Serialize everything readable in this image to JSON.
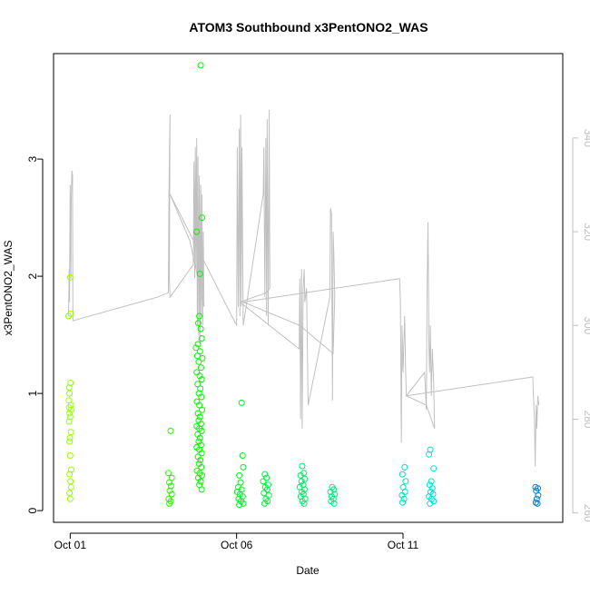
{
  "chart_data": {
    "type": "scatter",
    "title": "ATOM3 Southbound x3PentONO2_WAS",
    "xlabel": "Date",
    "ylabel": "x3PentONO2_WAS",
    "x_ticks": [
      "Oct 01",
      "Oct 06",
      "Oct 11"
    ],
    "x_tick_days": [
      1,
      6,
      11
    ],
    "xlim_days": [
      0.5,
      15.8
    ],
    "ylim": [
      -0.1,
      3.9
    ],
    "y_ticks": [
      0,
      1,
      2,
      3
    ],
    "y2lim": [
      258,
      358
    ],
    "y2_ticks": [
      260,
      280,
      300,
      320,
      340
    ],
    "grid": false,
    "series": [
      {
        "kind": "points",
        "axis": "left",
        "points": [
          [
            1.0,
            1.99
          ],
          [
            0.95,
            1.66
          ],
          [
            1.02,
            1.68
          ],
          [
            1.01,
            1.09
          ],
          [
            0.97,
            1.05
          ],
          [
            0.98,
            1.0
          ],
          [
            0.96,
            0.94
          ],
          [
            1.02,
            0.9
          ],
          [
            0.97,
            0.88
          ],
          [
            1.03,
            0.86
          ],
          [
            0.98,
            0.83
          ],
          [
            1.0,
            0.8
          ],
          [
            0.97,
            0.76
          ],
          [
            1.02,
            0.67
          ],
          [
            0.99,
            0.62
          ],
          [
            0.98,
            0.59
          ],
          [
            1.0,
            0.47
          ],
          [
            1.03,
            0.35
          ],
          [
            0.98,
            0.31
          ],
          [
            1.01,
            0.25
          ],
          [
            1.03,
            0.2
          ],
          [
            0.98,
            0.15
          ],
          [
            1.0,
            0.1
          ],
          [
            4.02,
            0.68
          ],
          [
            3.95,
            0.32
          ],
          [
            4.05,
            0.28
          ],
          [
            3.98,
            0.24
          ],
          [
            4.03,
            0.21
          ],
          [
            3.99,
            0.17
          ],
          [
            4.05,
            0.14
          ],
          [
            3.96,
            0.1
          ],
          [
            4.02,
            0.08
          ],
          [
            3.98,
            0.06
          ],
          [
            4.92,
            3.8
          ],
          [
            4.96,
            2.5
          ],
          [
            4.8,
            2.38
          ],
          [
            4.9,
            2.02
          ],
          [
            4.88,
            1.66
          ],
          [
            4.85,
            1.6
          ],
          [
            4.92,
            1.55
          ],
          [
            4.95,
            1.47
          ],
          [
            4.84,
            1.42
          ],
          [
            4.78,
            1.39
          ],
          [
            4.9,
            1.36
          ],
          [
            4.82,
            1.32
          ],
          [
            4.97,
            1.3
          ],
          [
            4.86,
            1.27
          ],
          [
            4.93,
            1.22
          ],
          [
            4.8,
            1.18
          ],
          [
            4.89,
            1.15
          ],
          [
            4.95,
            1.12
          ],
          [
            4.83,
            1.08
          ],
          [
            4.91,
            1.04
          ],
          [
            4.87,
            1.0
          ],
          [
            4.94,
            0.97
          ],
          [
            4.81,
            0.93
          ],
          [
            4.88,
            0.9
          ],
          [
            4.96,
            0.86
          ],
          [
            4.84,
            0.83
          ],
          [
            4.9,
            0.8
          ],
          [
            4.86,
            0.77
          ],
          [
            4.93,
            0.74
          ],
          [
            4.8,
            0.72
          ],
          [
            4.88,
            0.7
          ],
          [
            4.95,
            0.68
          ],
          [
            4.83,
            0.65
          ],
          [
            4.9,
            0.62
          ],
          [
            4.86,
            0.59
          ],
          [
            4.93,
            0.56
          ],
          [
            4.8,
            0.54
          ],
          [
            4.88,
            0.52
          ],
          [
            4.95,
            0.49
          ],
          [
            4.84,
            0.46
          ],
          [
            4.91,
            0.43
          ],
          [
            4.87,
            0.4
          ],
          [
            4.94,
            0.37
          ],
          [
            4.81,
            0.34
          ],
          [
            4.89,
            0.32
          ],
          [
            4.96,
            0.3
          ],
          [
            4.85,
            0.28
          ],
          [
            4.92,
            0.25
          ],
          [
            4.88,
            0.22
          ],
          [
            4.95,
            0.18
          ],
          [
            6.15,
            0.92
          ],
          [
            6.18,
            0.47
          ],
          [
            6.2,
            0.37
          ],
          [
            6.08,
            0.3
          ],
          [
            6.12,
            0.24
          ],
          [
            6.05,
            0.2
          ],
          [
            6.15,
            0.18
          ],
          [
            6.02,
            0.16
          ],
          [
            6.1,
            0.14
          ],
          [
            6.18,
            0.12
          ],
          [
            6.06,
            0.1
          ],
          [
            6.13,
            0.08
          ],
          [
            6.2,
            0.06
          ],
          [
            6.08,
            0.05
          ],
          [
            6.85,
            0.31
          ],
          [
            6.9,
            0.28
          ],
          [
            6.8,
            0.25
          ],
          [
            6.95,
            0.22
          ],
          [
            6.86,
            0.2
          ],
          [
            6.92,
            0.18
          ],
          [
            6.82,
            0.15
          ],
          [
            6.97,
            0.13
          ],
          [
            6.88,
            0.1
          ],
          [
            6.93,
            0.08
          ],
          [
            6.84,
            0.06
          ],
          [
            7.97,
            0.38
          ],
          [
            8.02,
            0.32
          ],
          [
            7.92,
            0.3
          ],
          [
            8.05,
            0.27
          ],
          [
            7.95,
            0.25
          ],
          [
            8.0,
            0.22
          ],
          [
            7.9,
            0.2
          ],
          [
            8.04,
            0.18
          ],
          [
            7.96,
            0.16
          ],
          [
            8.01,
            0.14
          ],
          [
            7.93,
            0.12
          ],
          [
            8.06,
            0.1
          ],
          [
            7.98,
            0.08
          ],
          [
            8.03,
            0.06
          ],
          [
            8.87,
            0.2
          ],
          [
            8.92,
            0.18
          ],
          [
            8.82,
            0.16
          ],
          [
            8.95,
            0.14
          ],
          [
            8.86,
            0.12
          ],
          [
            8.91,
            0.1
          ],
          [
            8.84,
            0.08
          ],
          [
            8.93,
            0.06
          ],
          [
            11.05,
            0.37
          ],
          [
            10.98,
            0.31
          ],
          [
            11.08,
            0.25
          ],
          [
            11.0,
            0.2
          ],
          [
            11.06,
            0.16
          ],
          [
            10.97,
            0.13
          ],
          [
            11.03,
            0.1
          ],
          [
            10.99,
            0.07
          ],
          [
            11.82,
            0.52
          ],
          [
            11.78,
            0.48
          ],
          [
            11.92,
            0.36
          ],
          [
            11.85,
            0.25
          ],
          [
            11.8,
            0.22
          ],
          [
            11.88,
            0.19
          ],
          [
            11.83,
            0.16
          ],
          [
            11.9,
            0.14
          ],
          [
            11.78,
            0.12
          ],
          [
            11.86,
            0.1
          ],
          [
            11.92,
            0.08
          ],
          [
            11.81,
            0.06
          ],
          [
            14.98,
            0.2
          ],
          [
            15.05,
            0.19
          ],
          [
            15.0,
            0.17
          ],
          [
            15.06,
            0.13
          ],
          [
            15.02,
            0.1
          ],
          [
            14.99,
            0.07
          ],
          [
            15.04,
            0.06
          ]
        ]
      },
      {
        "kind": "line",
        "axis": "right",
        "color": "#c0c0c0",
        "points": [
          [
            0.95,
            302
          ],
          [
            0.97,
            312
          ],
          [
            0.98,
            305
          ],
          [
            0.99,
            320
          ],
          [
            1.0,
            330
          ],
          [
            1.01,
            318
          ],
          [
            1.02,
            310
          ],
          [
            1.03,
            326
          ],
          [
            1.05,
            333
          ],
          [
            1.07,
            332
          ],
          [
            1.08,
            301
          ],
          [
            3.6,
            306
          ],
          [
            3.95,
            307
          ],
          [
            3.97,
            330
          ],
          [
            4.0,
            345
          ],
          [
            3.98,
            310
          ],
          [
            4.0,
            306
          ],
          [
            4.7,
            313
          ],
          [
            4.72,
            335
          ],
          [
            4.74,
            310
          ],
          [
            4.76,
            338
          ],
          [
            4.78,
            312
          ],
          [
            4.8,
            340
          ],
          [
            4.82,
            300
          ],
          [
            4.84,
            336
          ],
          [
            4.86,
            298
          ],
          [
            4.88,
            332
          ],
          [
            4.9,
            296
          ],
          [
            4.92,
            330
          ],
          [
            4.94,
            302
          ],
          [
            4.96,
            328
          ],
          [
            4.98,
            300
          ],
          [
            5.0,
            320
          ],
          [
            5.02,
            304
          ],
          [
            4.6,
            318
          ],
          [
            4.0,
            328
          ],
          [
            6.0,
            300
          ],
          [
            6.02,
            338
          ],
          [
            6.05,
            304
          ],
          [
            6.08,
            342
          ],
          [
            6.1,
            302
          ],
          [
            6.12,
            345
          ],
          [
            6.14,
            304
          ],
          [
            6.16,
            338
          ],
          [
            6.2,
            300
          ],
          [
            6.8,
            328
          ],
          [
            6.82,
            338
          ],
          [
            6.85,
            306
          ],
          [
            6.88,
            340
          ],
          [
            6.9,
            302
          ],
          [
            6.92,
            344
          ],
          [
            6.95,
            300
          ],
          [
            6.98,
            346
          ],
          [
            7.0,
            308
          ],
          [
            6.9,
            307
          ],
          [
            6.1,
            305
          ],
          [
            7.88,
            295
          ],
          [
            7.9,
            310
          ],
          [
            7.92,
            280
          ],
          [
            7.95,
            312
          ],
          [
            7.97,
            278
          ],
          [
            8.0,
            308
          ],
          [
            8.03,
            312
          ],
          [
            8.05,
            305
          ],
          [
            8.1,
            308
          ],
          [
            8.15,
            283
          ],
          [
            8.8,
            306
          ],
          [
            8.82,
            325
          ],
          [
            8.85,
            324
          ],
          [
            8.88,
            284
          ],
          [
            8.9,
            320
          ],
          [
            8.92,
            316
          ],
          [
            8.95,
            306
          ],
          [
            8.9,
            294
          ],
          [
            7.9,
            300
          ],
          [
            6.2,
            305
          ],
          [
            10.9,
            310
          ],
          [
            10.92,
            305
          ],
          [
            10.95,
            275
          ],
          [
            10.97,
            300
          ],
          [
            11.0,
            290
          ],
          [
            11.05,
            302
          ],
          [
            11.08,
            290
          ],
          [
            11.1,
            285
          ],
          [
            11.65,
            290
          ],
          [
            11.7,
            282
          ],
          [
            11.72,
            305
          ],
          [
            11.75,
            322
          ],
          [
            11.78,
            295
          ],
          [
            11.8,
            290
          ],
          [
            11.82,
            300
          ],
          [
            11.85,
            285
          ],
          [
            11.88,
            295
          ],
          [
            11.92,
            288
          ],
          [
            11.95,
            278
          ],
          [
            11.7,
            283
          ],
          [
            11.1,
            285
          ],
          [
            14.9,
            289
          ],
          [
            14.92,
            285
          ],
          [
            14.95,
            280
          ],
          [
            14.97,
            270
          ],
          [
            15.0,
            283
          ],
          [
            15.02,
            278
          ],
          [
            15.05,
            285
          ],
          [
            15.08,
            283
          ]
        ]
      }
    ]
  }
}
